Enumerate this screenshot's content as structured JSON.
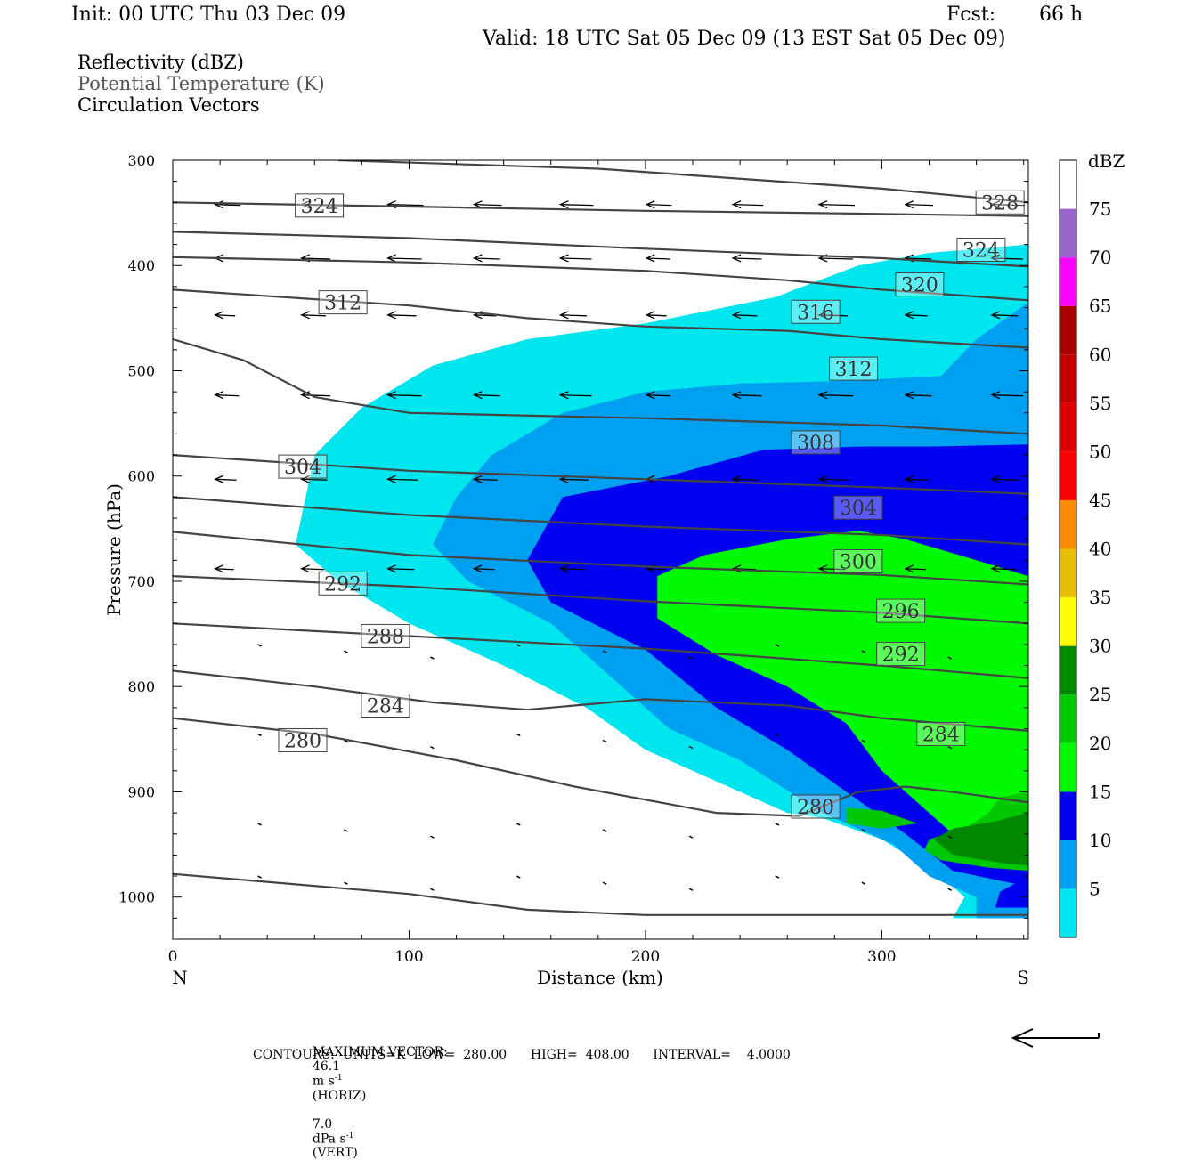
{
  "header": {
    "init": "Init: 00 UTC Thu 03 Dec 09",
    "fcst_label": "Fcst:",
    "fcst_value": "66 h",
    "valid": "Valid: 18 UTC Sat 05 Dec 09 (13 EST Sat 05 Dec 09)"
  },
  "legend": {
    "reflectivity": "Reflectivity (dBZ)",
    "theta": "Potential Temperature (K)",
    "vectors": "Circulation Vectors"
  },
  "footer": {
    "max_vector_label": "MAXIMUM VECTOR:",
    "horiz_value": "46.1",
    "horiz_units": "m s",
    "horiz_exp": "-1",
    "horiz_tag": "(HORIZ)",
    "vert_value": "7.0",
    "vert_units": "dPa s",
    "vert_exp": "-1",
    "vert_tag": "(VERT)",
    "contours_line": "CONTOURS:  UNITS=K  LOW=  280.00      HIGH=  408.00      INTERVAL=    4.0000"
  },
  "colors": {
    "c5": "#00e6ee",
    "c10": "#00a0f0",
    "c15": "#0000f0",
    "c20": "#00fa00",
    "c25": "#00c800",
    "c30": "#008800",
    "c35": "#ffff00",
    "c40": "#e6be00",
    "c45": "#ff8c00",
    "c50": "#ff0000",
    "c55": "#dd0000",
    "c60": "#c30000",
    "c65": "#a80000",
    "c70": "#ff00ff",
    "c75": "#9966cc",
    "contour": "#444444"
  },
  "chart_data": {
    "type": "cross-section",
    "xlabel": "Distance (km)",
    "ylabel": "Pressure (hPa)",
    "x_left_label": "N",
    "x_right_label": "S",
    "xlim": [
      0,
      362
    ],
    "ylim": [
      1040,
      300
    ],
    "x_ticks": [
      0,
      100,
      200,
      300
    ],
    "y_ticks": [
      300,
      400,
      500,
      600,
      700,
      800,
      900,
      1000
    ],
    "colorbar": {
      "title": "dBZ",
      "levels": [
        5,
        10,
        15,
        20,
        25,
        30,
        35,
        40,
        45,
        50,
        55,
        60,
        65,
        70,
        75
      ],
      "colors": [
        "#00e6ee",
        "#00a0f0",
        "#0000f0",
        "#00fa00",
        "#00c800",
        "#008800",
        "#ffff00",
        "#e6be00",
        "#ff8c00",
        "#ff0000",
        "#dd0000",
        "#c30000",
        "#a80000",
        "#ff00ff",
        "#9966cc",
        "#ffffff"
      ]
    },
    "reflectivity_regions": [
      {
        "dbz": 5,
        "points": [
          [
            362,
            380
          ],
          [
            320,
            388
          ],
          [
            290,
            400
          ],
          [
            255,
            430
          ],
          [
            200,
            455
          ],
          [
            150,
            470
          ],
          [
            110,
            495
          ],
          [
            80,
            535
          ],
          [
            60,
            580
          ],
          [
            52,
            665
          ],
          [
            70,
            700
          ],
          [
            100,
            740
          ],
          [
            140,
            780
          ],
          [
            175,
            820
          ],
          [
            200,
            860
          ],
          [
            230,
            890
          ],
          [
            260,
            920
          ],
          [
            275,
            925
          ],
          [
            300,
            945
          ],
          [
            325,
            980
          ],
          [
            335,
            1000
          ],
          [
            330,
            1020
          ],
          [
            362,
            1020
          ]
        ]
      },
      {
        "dbz": 10,
        "points": [
          [
            362,
            435
          ],
          [
            340,
            470
          ],
          [
            325,
            505
          ],
          [
            280,
            510
          ],
          [
            240,
            512
          ],
          [
            200,
            520
          ],
          [
            165,
            540
          ],
          [
            135,
            580
          ],
          [
            120,
            620
          ],
          [
            110,
            665
          ],
          [
            125,
            700
          ],
          [
            160,
            740
          ],
          [
            185,
            790
          ],
          [
            210,
            840
          ],
          [
            240,
            870
          ],
          [
            275,
            920
          ],
          [
            305,
            950
          ],
          [
            320,
            980
          ],
          [
            340,
            1000
          ],
          [
            340,
            1020
          ],
          [
            362,
            1020
          ]
        ]
      },
      {
        "dbz": 15,
        "points": [
          [
            362,
            570
          ],
          [
            320,
            572
          ],
          [
            290,
            572
          ],
          [
            250,
            575
          ],
          [
            210,
            600
          ],
          [
            165,
            620
          ],
          [
            150,
            680
          ],
          [
            160,
            720
          ],
          [
            200,
            765
          ],
          [
            230,
            820
          ],
          [
            260,
            860
          ],
          [
            285,
            900
          ],
          [
            310,
            940
          ],
          [
            330,
            975
          ],
          [
            362,
            990
          ]
        ]
      },
      {
        "dbz": 20,
        "points": [
          [
            362,
            695
          ],
          [
            340,
            680
          ],
          [
            310,
            660
          ],
          [
            290,
            652
          ],
          [
            260,
            660
          ],
          [
            225,
            675
          ],
          [
            205,
            695
          ],
          [
            205,
            735
          ],
          [
            230,
            770
          ],
          [
            260,
            800
          ],
          [
            285,
            835
          ],
          [
            300,
            880
          ],
          [
            320,
            920
          ],
          [
            340,
            960
          ],
          [
            362,
            975
          ]
        ]
      },
      {
        "dbz": 25,
        "points": [
          [
            362,
            900
          ],
          [
            350,
            905
          ],
          [
            345,
            920
          ],
          [
            335,
            935
          ],
          [
            320,
            945
          ],
          [
            318,
            955
          ],
          [
            325,
            965
          ],
          [
            345,
            972
          ],
          [
            362,
            975
          ]
        ]
      },
      {
        "dbz": 30,
        "points": [
          [
            362,
            920
          ],
          [
            348,
            928
          ],
          [
            330,
            935
          ],
          [
            322,
            945
          ],
          [
            330,
            960
          ],
          [
            352,
            968
          ],
          [
            362,
            970
          ]
        ]
      },
      {
        "dbz": 25,
        "points": [
          [
            285,
            915
          ],
          [
            300,
            918
          ],
          [
            315,
            930
          ],
          [
            300,
            935
          ],
          [
            285,
            930
          ]
        ]
      },
      {
        "dbz": 15,
        "points": [
          [
            362,
            980
          ],
          [
            350,
            995
          ],
          [
            348,
            1010
          ],
          [
            362,
            1010
          ]
        ]
      }
    ],
    "theta_contours": [
      {
        "label": "328",
        "label_at": [
          350,
          340
        ],
        "points": [
          [
            70,
            300
          ],
          [
            180,
            308
          ],
          [
            300,
            327
          ],
          [
            362,
            340
          ]
        ]
      },
      {
        "label": "324",
        "label_at": [
          62,
          343
        ],
        "points": [
          [
            0,
            340
          ],
          [
            100,
            344
          ],
          [
            200,
            348
          ],
          [
            300,
            351
          ],
          [
            362,
            353
          ]
        ]
      },
      {
        "label": "324",
        "label_at": [
          342,
          385
        ],
        "points": [
          [
            0,
            368
          ],
          [
            100,
            374
          ],
          [
            200,
            384
          ],
          [
            300,
            393
          ],
          [
            362,
            401
          ]
        ]
      },
      {
        "label": "320",
        "label_at": [
          316,
          418
        ],
        "points": [
          [
            0,
            392
          ],
          [
            100,
            397
          ],
          [
            200,
            405
          ],
          [
            260,
            414
          ],
          [
            300,
            423
          ],
          [
            362,
            433
          ]
        ]
      },
      {
        "label": "316",
        "label_at": [
          272,
          444
        ],
        "points": [
          [
            0,
            423
          ],
          [
            100,
            438
          ],
          [
            150,
            450
          ],
          [
            200,
            458
          ],
          [
            260,
            462
          ],
          [
            300,
            470
          ],
          [
            362,
            478
          ]
        ]
      },
      {
        "label": "312",
        "label_at": [
          72,
          435
        ],
        "points": [
          [
            0,
            470
          ],
          [
            30,
            490
          ],
          [
            60,
            525
          ],
          [
            100,
            540
          ],
          [
            200,
            545
          ],
          [
            300,
            552
          ],
          [
            362,
            560
          ]
        ]
      },
      {
        "label": "312",
        "label_at": [
          288,
          498
        ],
        "points": [
          [
            0,
            470
          ],
          [
            30,
            490
          ],
          [
            60,
            525
          ],
          [
            100,
            540
          ],
          [
            200,
            545
          ],
          [
            300,
            552
          ],
          [
            362,
            560
          ]
        ]
      },
      {
        "label": "308",
        "label_at": [
          272,
          568
        ],
        "points": [
          [
            0,
            580
          ],
          [
            100,
            595
          ],
          [
            200,
            603
          ],
          [
            300,
            611
          ],
          [
            362,
            617
          ]
        ]
      },
      {
        "label": "304",
        "label_at": [
          55,
          591
        ],
        "points": [
          [
            0,
            620
          ],
          [
            100,
            637
          ],
          [
            200,
            648
          ],
          [
            300,
            656
          ],
          [
            362,
            665
          ]
        ]
      },
      {
        "label": "304",
        "label_at": [
          290,
          630
        ],
        "points": [
          [
            0,
            653
          ],
          [
            100,
            675
          ],
          [
            200,
            686
          ],
          [
            300,
            694
          ],
          [
            362,
            703
          ]
        ]
      },
      {
        "label": "300",
        "label_at": [
          290,
          681
        ],
        "points": [
          [
            0,
            695
          ],
          [
            100,
            705
          ],
          [
            200,
            719
          ],
          [
            300,
            730
          ],
          [
            362,
            740
          ]
        ]
      },
      {
        "label": "296",
        "label_at": [
          308,
          728
        ],
        "points": [
          [
            0,
            740
          ],
          [
            100,
            752
          ],
          [
            200,
            764
          ],
          [
            300,
            780
          ],
          [
            362,
            792
          ]
        ]
      },
      {
        "label": "292",
        "label_at": [
          72,
          702
        ],
        "points": [
          [
            0,
            785
          ],
          [
            60,
            800
          ],
          [
            110,
            815
          ],
          [
            150,
            822
          ],
          [
            170,
            818
          ],
          [
            200,
            812
          ],
          [
            260,
            818
          ],
          [
            300,
            830
          ],
          [
            362,
            842
          ]
        ]
      },
      {
        "label": "292",
        "label_at": [
          308,
          769
        ],
        "points": [
          [
            0,
            830
          ],
          [
            60,
            845
          ],
          [
            120,
            870
          ],
          [
            170,
            895
          ],
          [
            230,
            920
          ],
          [
            265,
            923
          ],
          [
            290,
            900
          ],
          [
            310,
            895
          ],
          [
            330,
            900
          ],
          [
            362,
            910
          ]
        ]
      },
      {
        "label": "288",
        "label_at": [
          90,
          752
        ],
        "points": [
          [
            0,
            978
          ],
          [
            100,
            997
          ],
          [
            150,
            1012
          ],
          [
            200,
            1017
          ],
          [
            280,
            1017
          ],
          [
            362,
            1017
          ]
        ]
      },
      {
        "label": "284",
        "label_at": [
          90,
          818
        ],
        "points": []
      },
      {
        "label": "284",
        "label_at": [
          325,
          845
        ],
        "points": []
      },
      {
        "label": "280",
        "label_at": [
          55,
          851
        ],
        "points": []
      },
      {
        "label": "280",
        "label_at": [
          272,
          914
        ],
        "points": []
      }
    ]
  }
}
